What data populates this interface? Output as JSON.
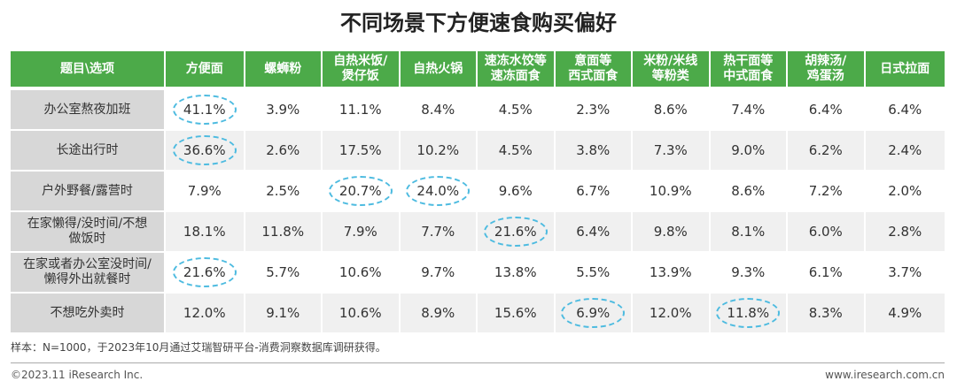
{
  "title": "不同场景下方便速食购买偏好",
  "chart_data": {
    "type": "table",
    "title": "不同场景下方便速食购买偏好",
    "corner_header": "题目\\选项",
    "columns": [
      "方便面",
      "螺蛳粉",
      "自热米饭/煲仔饭",
      "自热火锅",
      "速冻水饺等速冻面食",
      "意面等西式面食",
      "米粉/米线等粉类",
      "热干面等中式面食",
      "胡辣汤/鸡蛋汤",
      "日式拉面"
    ],
    "header_lines": [
      [
        "方便面"
      ],
      [
        "螺蛳粉"
      ],
      [
        "自热米饭/",
        "煲仔饭"
      ],
      [
        "自热火锅"
      ],
      [
        "速冻水饺等",
        "速冻面食"
      ],
      [
        "意面等",
        "西式面食"
      ],
      [
        "米粉/米线",
        "等粉类"
      ],
      [
        "热干面等",
        "中式面食"
      ],
      [
        "胡辣汤/",
        "鸡蛋汤"
      ],
      [
        "日式拉面"
      ]
    ],
    "rows": [
      {
        "label_lines": [
          "办公室熬夜加班"
        ],
        "values": [
          "41.1%",
          "3.9%",
          "11.1%",
          "8.4%",
          "4.5%",
          "2.3%",
          "8.6%",
          "7.4%",
          "6.4%",
          "6.4%"
        ],
        "highlight": [
          0
        ]
      },
      {
        "label_lines": [
          "长途出行时"
        ],
        "values": [
          "36.6%",
          "2.6%",
          "17.5%",
          "10.2%",
          "4.5%",
          "3.8%",
          "7.3%",
          "9.0%",
          "6.2%",
          "2.4%"
        ],
        "highlight": [
          0
        ]
      },
      {
        "label_lines": [
          "户外野餐/露营时"
        ],
        "values": [
          "7.9%",
          "2.5%",
          "20.7%",
          "24.0%",
          "9.6%",
          "6.7%",
          "10.9%",
          "8.6%",
          "7.2%",
          "2.0%"
        ],
        "highlight": [
          2,
          3
        ]
      },
      {
        "label_lines": [
          "在家懒得/没时间/不想",
          "做饭时"
        ],
        "values": [
          "18.1%",
          "11.8%",
          "7.9%",
          "7.7%",
          "21.6%",
          "6.4%",
          "9.8%",
          "8.1%",
          "6.0%",
          "2.8%"
        ],
        "highlight": [
          4
        ]
      },
      {
        "label_lines": [
          "在家或者办公室没时间/",
          "懒得外出就餐时"
        ],
        "values": [
          "21.6%",
          "5.7%",
          "10.6%",
          "9.7%",
          "13.8%",
          "5.5%",
          "13.9%",
          "9.3%",
          "6.1%",
          "3.7%"
        ],
        "highlight": [
          0
        ]
      },
      {
        "label_lines": [
          "不想吃外卖时"
        ],
        "values": [
          "12.0%",
          "9.1%",
          "10.6%",
          "8.9%",
          "15.6%",
          "6.9%",
          "12.0%",
          "11.8%",
          "8.3%",
          "4.9%"
        ],
        "highlight": [
          5,
          7
        ]
      }
    ],
    "highlight_color": "#4dbbe0",
    "header_color": "#4caa49",
    "label_bg_color": "#d7d7d7",
    "alt_row_color": "#f0f0f0"
  },
  "footnote": "样本：N=1000，于2023年10月通过艾瑞智研平台-消费洞察数据库调研获得。",
  "copyright": "©2023.11 iResearch Inc.",
  "website": "www.iresearch.com.cn"
}
